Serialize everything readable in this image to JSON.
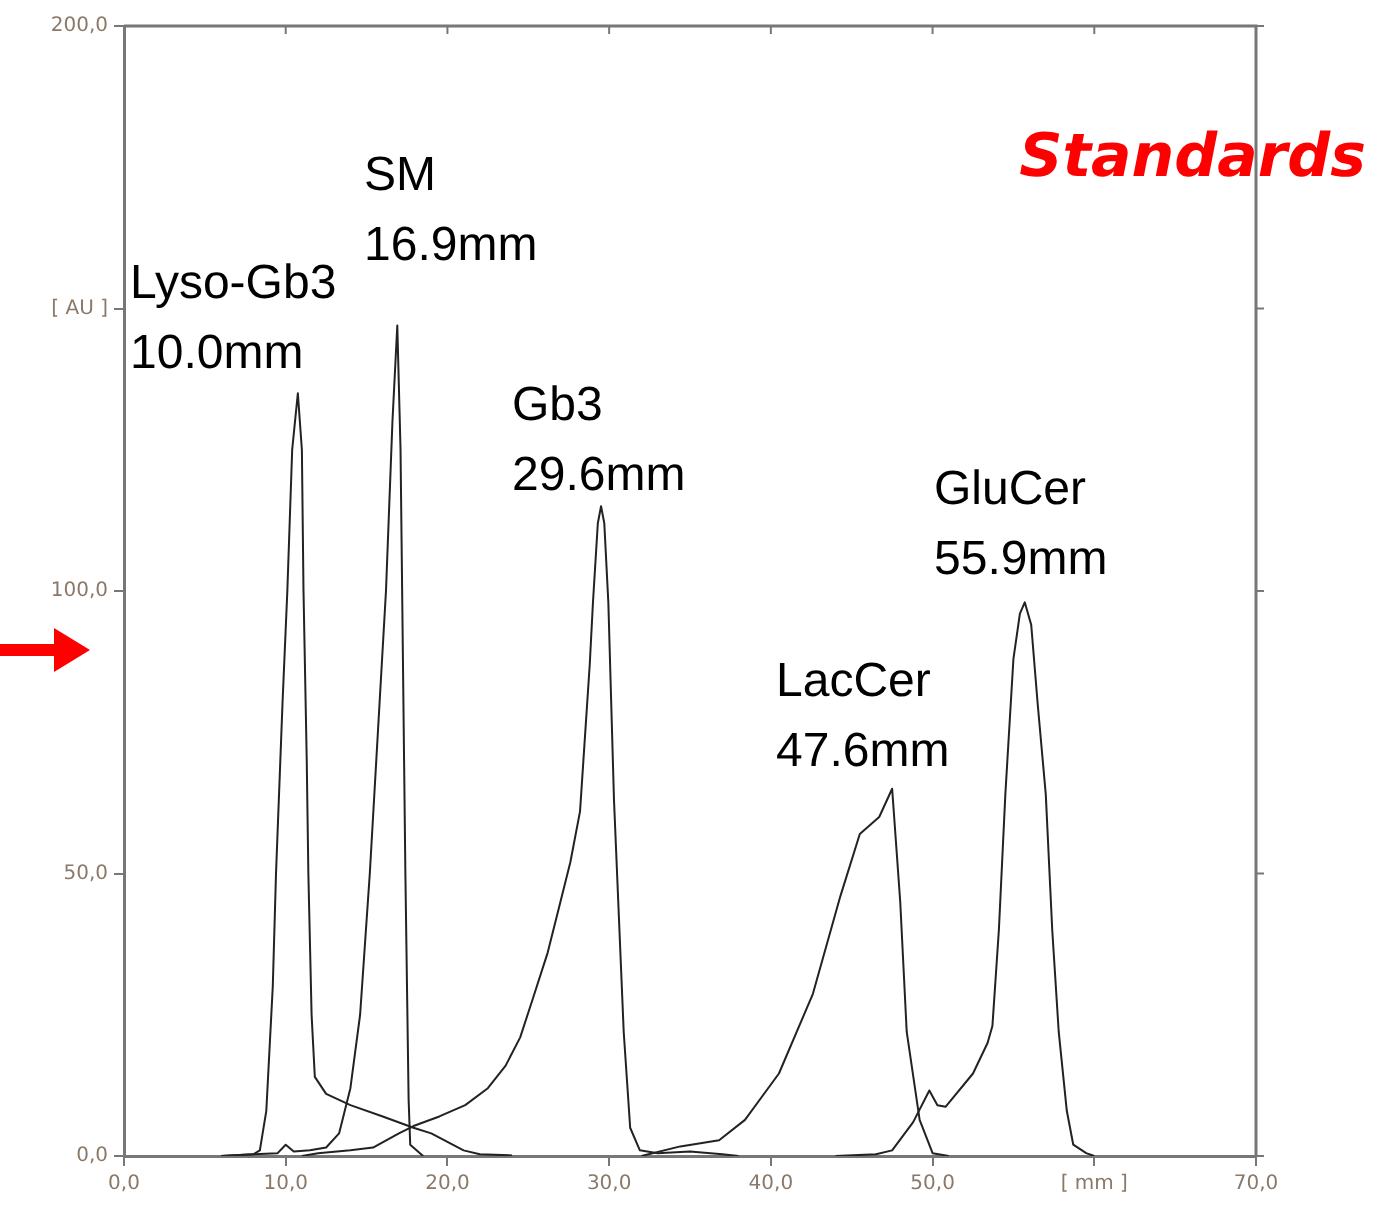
{
  "chart_data": {
    "type": "line",
    "title": "Standards",
    "xlim": [
      0,
      70
    ],
    "ylim": [
      0,
      200
    ],
    "xticks": [
      {
        "value": 0,
        "label": "0,0"
      },
      {
        "value": 10,
        "label": "10,0"
      },
      {
        "value": 20,
        "label": "20,0"
      },
      {
        "value": 30,
        "label": "30,0"
      },
      {
        "value": 40,
        "label": "40,0"
      },
      {
        "value": 50,
        "label": "50,0"
      },
      {
        "value": 60,
        "label": "[ mm ]"
      },
      {
        "value": 70,
        "label": "70,0"
      }
    ],
    "yticks": [
      {
        "value": 0,
        "label": "0,0"
      },
      {
        "value": 50,
        "label": "50,0"
      },
      {
        "value": 100,
        "label": "100,0"
      },
      {
        "value": 150,
        "label": "[ AU ]"
      },
      {
        "value": 200,
        "label": "200,0"
      }
    ],
    "grid": false,
    "legend": false,
    "marker": "none",
    "line_style": "solid",
    "series": [
      {
        "color": "#222222",
        "x": [
          6,
          8,
          8.4,
          8.8,
          9.2,
          9.4,
          9.8,
          10.1,
          10.4,
          10.75,
          11.0,
          11.1,
          11.3,
          11.4,
          11.6,
          11.8,
          12.5,
          14,
          16,
          17.9,
          19,
          20,
          21,
          22,
          24
        ],
        "values": [
          0,
          0.3,
          1,
          8,
          30,
          50,
          80,
          100,
          125,
          135,
          125,
          100,
          70,
          50,
          25,
          14,
          11,
          9,
          7,
          5,
          4,
          2.5,
          1,
          0.3,
          0.1
        ]
      },
      {
        "color": "#222222",
        "x": [
          6,
          8,
          9.5,
          10,
          10.5,
          11.5,
          12.5,
          13.3,
          14.0,
          14.6,
          15.2,
          15.7,
          16.2,
          16.6,
          16.9,
          17.1,
          17.2,
          17.4,
          17.6,
          17.7,
          18.3,
          18.5
        ],
        "values": [
          0,
          0.3,
          0.5,
          2,
          0.8,
          1,
          1.5,
          4,
          12,
          25,
          50,
          75,
          100,
          130,
          147,
          125,
          100,
          50,
          10,
          2,
          0.5,
          0
        ]
      },
      {
        "color": "#222222",
        "x": [
          11,
          12,
          14,
          15.4,
          17,
          17.9,
          19.5,
          21.1,
          22.5,
          23.6,
          24.5,
          25.3,
          26.2,
          26.9,
          27.6,
          28.2,
          28.8,
          29.0,
          29.3,
          29.5,
          29.7,
          29.95,
          30.3,
          30.9,
          31.3,
          31.9,
          33,
          35,
          37,
          38
        ],
        "values": [
          0,
          0.5,
          1,
          1.5,
          4,
          5.3,
          7,
          9,
          12,
          16,
          21,
          28,
          36,
          44,
          52,
          61,
          87,
          98,
          112,
          115,
          112,
          98,
          63,
          22,
          5,
          1,
          0.5,
          0.8,
          0.3,
          0
        ]
      },
      {
        "color": "#222222",
        "x": [
          32,
          34.4,
          36.8,
          38.4,
          40.5,
          42.6,
          44.3,
          45.5,
          46.7,
          47.5,
          48.0,
          48.4,
          49.2,
          50.0,
          51
        ],
        "values": [
          0,
          1.7,
          2.8,
          6.4,
          14.6,
          28.7,
          46,
          57,
          60,
          65,
          45,
          22,
          6.4,
          0.5,
          0
        ]
      },
      {
        "color": "#222222",
        "x": [
          44,
          46.5,
          47.5,
          48.8,
          49.8,
          50.3,
          50.8,
          52.5,
          53.4,
          53.7,
          54.1,
          54.5,
          55.0,
          55.4,
          55.7,
          56.1,
          56.5,
          57.0,
          57.4,
          57.8,
          58.3,
          58.7,
          59.5,
          60
        ],
        "values": [
          0,
          0.3,
          1,
          6,
          11.6,
          9,
          8.7,
          14.6,
          20,
          23,
          40,
          64,
          88,
          96,
          98,
          94,
          80,
          64,
          40,
          22,
          8,
          2,
          0.5,
          0
        ]
      }
    ],
    "annotations": [
      "Lyso-Gb3\n10.0mm",
      "SM\n16.9mm",
      "Gb3\n29.6mm",
      "LacCer\n47.6mm",
      "GluCer\n55.9mm"
    ]
  }
}
